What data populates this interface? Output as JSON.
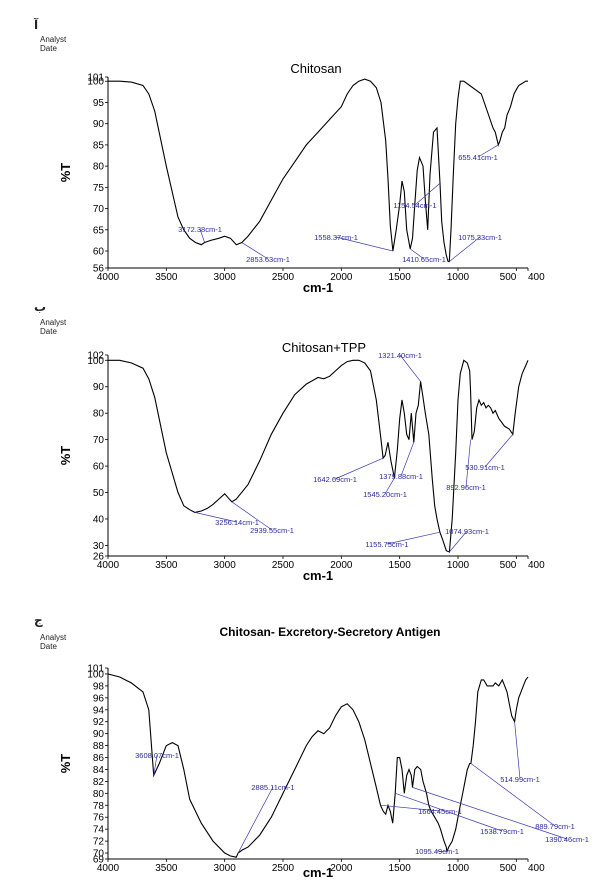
{
  "figure": {
    "analyst_label": "Analyst",
    "date_label": "Date",
    "panel_letters": [
      "آ",
      "ب",
      "ج"
    ]
  },
  "chart_data": [
    {
      "type": "line",
      "title": "Chitosan",
      "xlabel": "cm-1",
      "ylabel": "%T",
      "xlim": [
        4000,
        400
      ],
      "ylim": [
        56,
        101
      ],
      "x_ticks": [
        "4000",
        "3500",
        "3000",
        "2500",
        "2000",
        "1500",
        "1000",
        "500",
        "400"
      ],
      "y_ticks": [
        "56",
        "60",
        "65",
        "70",
        "75",
        "80",
        "85",
        "90",
        "95",
        "100",
        "101"
      ],
      "grid": false,
      "series": [
        {
          "x": [
            4000,
            3900,
            3800,
            3700,
            3650,
            3600,
            3500,
            3400,
            3350,
            3300,
            3250,
            3200,
            3172,
            3120,
            3050,
            3000,
            2950,
            2900,
            2853,
            2800,
            2700,
            2600,
            2500,
            2400,
            2300,
            2200,
            2100,
            2000,
            1950,
            1900,
            1850,
            1800,
            1750,
            1700,
            1660,
            1620,
            1600,
            1580,
            1558,
            1530,
            1500,
            1480,
            1460,
            1440,
            1410,
            1390,
            1370,
            1350,
            1330,
            1300,
            1280,
            1260,
            1240,
            1210,
            1180,
            1154,
            1140,
            1120,
            1100,
            1085,
            1075,
            1060,
            1040,
            1020,
            1000,
            980,
            950,
            900,
            850,
            800,
            750,
            700,
            680,
            655,
            640,
            620,
            600,
            580,
            550,
            520,
            500,
            480,
            450,
            420,
            400
          ],
          "y": [
            100,
            100,
            99.8,
            99,
            97,
            93,
            80,
            68,
            65,
            63,
            62,
            61.5,
            62,
            62.5,
            63,
            63.5,
            63,
            61.5,
            62,
            63.5,
            67,
            72,
            77,
            81,
            85,
            88,
            91,
            94,
            97,
            99,
            100,
            100.5,
            100,
            98.5,
            95,
            86,
            77,
            66,
            60,
            65,
            71,
            76.5,
            74,
            65,
            60.5,
            63,
            71,
            79,
            82,
            80,
            72,
            65,
            78,
            88,
            89,
            76,
            67,
            62,
            59,
            57.5,
            57.5,
            65,
            78,
            90,
            96,
            100,
            100,
            99,
            98,
            97,
            93,
            89,
            88,
            85,
            86,
            88,
            89,
            92,
            94,
            97,
            98,
            99,
            99.5,
            100,
            100
          ]
        }
      ],
      "annotations": [
        {
          "label": "3172.38cm-1",
          "x": 3172,
          "y": 62
        },
        {
          "label": "2853.63cm-1",
          "x": 2853,
          "y": 62
        },
        {
          "label": "1558.37cm-1",
          "x": 1558,
          "y": 60
        },
        {
          "label": "1410.65cm-1",
          "x": 1410,
          "y": 60.5
        },
        {
          "label": "1154.54cm-1",
          "x": 1154,
          "y": 76
        },
        {
          "label": "1075.33cm-1",
          "x": 1075,
          "y": 57.5
        },
        {
          "label": "655.41cm-1",
          "x": 655,
          "y": 85
        }
      ]
    },
    {
      "type": "line",
      "title": "Chitosan+TPP",
      "xlabel": "cm-1",
      "ylabel": "%T",
      "xlim": [
        4000,
        400
      ],
      "ylim": [
        26,
        102
      ],
      "x_ticks": [
        "4000",
        "3500",
        "3000",
        "2500",
        "2000",
        "1500",
        "1000",
        "500",
        "400"
      ],
      "y_ticks": [
        "26",
        "30",
        "40",
        "50",
        "60",
        "70",
        "80",
        "90",
        "100",
        "102"
      ],
      "grid": false,
      "series": [
        {
          "x": [
            4000,
            3900,
            3800,
            3700,
            3650,
            3600,
            3500,
            3400,
            3350,
            3300,
            3256,
            3200,
            3150,
            3100,
            3050,
            3000,
            2970,
            2939,
            2900,
            2800,
            2700,
            2600,
            2500,
            2400,
            2300,
            2200,
            2150,
            2100,
            2050,
            2000,
            1950,
            1900,
            1850,
            1800,
            1750,
            1700,
            1660,
            1642,
            1625,
            1600,
            1575,
            1545,
            1520,
            1500,
            1480,
            1460,
            1440,
            1420,
            1400,
            1379,
            1360,
            1340,
            1321,
            1300,
            1280,
            1250,
            1220,
            1200,
            1180,
            1155,
            1130,
            1100,
            1074,
            1050,
            1020,
            1000,
            980,
            950,
            920,
            900,
            892,
            880,
            860,
            840,
            820,
            800,
            780,
            760,
            740,
            720,
            700,
            680,
            650,
            600,
            560,
            530,
            510,
            480,
            450,
            420,
            400
          ],
          "y": [
            100,
            100,
            99,
            97,
            93,
            86,
            65,
            50,
            45,
            43.5,
            42.5,
            43,
            44,
            45.5,
            47.5,
            49.5,
            48,
            46.5,
            47.5,
            53,
            62,
            72,
            80,
            87,
            91,
            93.5,
            93,
            94,
            96,
            98,
            99.5,
            100,
            100,
            99,
            96,
            85,
            70,
            63,
            64,
            69,
            62,
            55.5,
            66,
            78,
            85,
            80,
            72,
            70,
            80,
            69,
            80,
            83,
            92,
            86,
            80,
            72,
            55,
            45,
            40,
            35,
            32,
            28,
            27.5,
            40,
            65,
            85,
            95,
            100,
            99,
            96,
            88,
            70,
            73,
            82,
            85,
            83,
            84,
            82,
            83,
            82,
            80,
            81,
            78,
            75,
            74,
            72,
            80,
            90,
            95,
            98,
            100
          ]
        }
      ],
      "annotations": [
        {
          "label": "3256.14cm-1",
          "x": 3256,
          "y": 42.5
        },
        {
          "label": "2939.55cm-1",
          "x": 2939,
          "y": 46.5
        },
        {
          "label": "1642.69cm-1",
          "x": 1642,
          "y": 63
        },
        {
          "label": "1545.20cm-1",
          "x": 1545,
          "y": 55.5
        },
        {
          "label": "1379.88cm-1",
          "x": 1379,
          "y": 69
        },
        {
          "label": "1321.40cm-1",
          "x": 1321,
          "y": 92
        },
        {
          "label": "1155.75cm-1",
          "x": 1155,
          "y": 35
        },
        {
          "label": "1074.93cm-1",
          "x": 1074,
          "y": 27.5
        },
        {
          "label": "892.96cm-1",
          "x": 892,
          "y": 70
        },
        {
          "label": "530.91cm-1",
          "x": 530,
          "y": 72
        }
      ]
    },
    {
      "type": "line",
      "title": "Chitosan- Excretory-Secretory Antigen",
      "xlabel": "cm-1",
      "ylabel": "%T",
      "xlim": [
        4000,
        400
      ],
      "ylim": [
        69,
        101
      ],
      "x_ticks": [
        "4000",
        "3500",
        "3000",
        "2500",
        "2000",
        "1500",
        "1000",
        "500",
        "400"
      ],
      "y_ticks": [
        "69",
        "70",
        "72",
        "74",
        "76",
        "78",
        "80",
        "82",
        "84",
        "86",
        "88",
        "90",
        "92",
        "94",
        "96",
        "98",
        "100",
        "101"
      ],
      "grid": false,
      "series": [
        {
          "x": [
            4000,
            3900,
            3800,
            3700,
            3650,
            3608,
            3560,
            3500,
            3450,
            3400,
            3350,
            3300,
            3200,
            3100,
            3000,
            2950,
            2900,
            2885,
            2850,
            2800,
            2700,
            2600,
            2500,
            2400,
            2300,
            2250,
            2200,
            2150,
            2100,
            2050,
            2000,
            1950,
            1900,
            1850,
            1800,
            1750,
            1700,
            1664,
            1640,
            1620,
            1600,
            1580,
            1560,
            1538,
            1520,
            1500,
            1480,
            1460,
            1440,
            1420,
            1400,
            1390,
            1370,
            1350,
            1320,
            1300,
            1270,
            1250,
            1230,
            1200,
            1170,
            1150,
            1120,
            1100,
            1095,
            1080,
            1050,
            1020,
            1000,
            980,
            960,
            940,
            920,
            900,
            889,
            870,
            850,
            830,
            800,
            780,
            750,
            720,
            700,
            680,
            650,
            620,
            600,
            580,
            560,
            540,
            515,
            500,
            480,
            460,
            440,
            420,
            400
          ],
          "y": [
            100,
            99.5,
            98.5,
            97,
            94,
            83,
            85,
            88,
            88.5,
            88,
            84,
            79,
            75,
            72,
            70,
            69.5,
            69.3,
            70,
            70.5,
            71,
            73,
            76,
            80,
            84,
            88,
            89.5,
            90.5,
            90,
            91,
            93,
            94.5,
            95,
            94,
            92,
            89,
            85,
            81,
            78,
            77,
            76.5,
            78,
            77,
            75,
            80,
            86,
            86,
            84,
            80,
            83,
            84,
            83,
            81,
            84,
            84.5,
            84,
            82,
            80,
            78,
            77,
            76,
            75,
            74,
            72,
            71,
            70.2,
            71,
            72,
            74,
            76,
            78,
            80,
            82,
            84,
            85,
            85,
            88,
            92,
            97,
            99,
            99,
            98,
            98,
            98,
            98.5,
            98,
            99,
            98,
            97,
            95,
            93,
            92,
            94,
            96,
            97,
            98,
            99,
            99.5
          ]
        }
      ],
      "annotations": [
        {
          "label": "3608.07cm-1",
          "x": 3608,
          "y": 83
        },
        {
          "label": "2885.11cm-1",
          "x": 2885,
          "y": 70
        },
        {
          "label": "1664.45cm-1",
          "x": 1664,
          "y": 78
        },
        {
          "label": "1538.79cm-1",
          "x": 1538,
          "y": 80
        },
        {
          "label": "1390.46cm-1",
          "x": 1390,
          "y": 81
        },
        {
          "label": "1095.49cm-1",
          "x": 1095,
          "y": 70.2
        },
        {
          "label": "889.79cm-1",
          "x": 889,
          "y": 85
        },
        {
          "label": "514.99cm-1",
          "x": 515,
          "y": 92
        }
      ]
    }
  ]
}
